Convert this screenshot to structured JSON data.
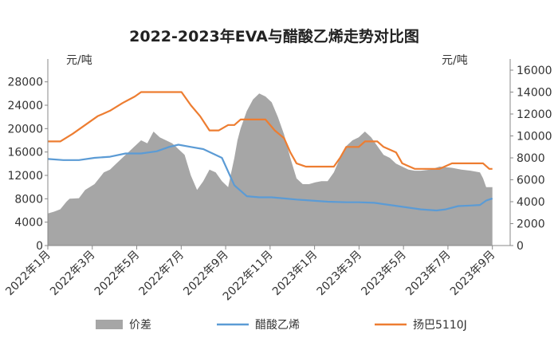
{
  "chart_data": {
    "type": "area+line",
    "title": "2022-2023年EVA与醋酸乙烯走势对比图",
    "y_left": {
      "unit": "元/吨",
      "ticks": [
        0,
        4000,
        8000,
        12000,
        16000,
        20000,
        24000,
        28000
      ],
      "lim": [
        0,
        30000
      ]
    },
    "y_right": {
      "unit": "元/吨",
      "ticks": [
        0,
        2000,
        4000,
        6000,
        8000,
        10000,
        12000,
        14000,
        16000
      ],
      "lim": [
        0,
        16000
      ]
    },
    "x_ticks": [
      "2022年1月",
      "2022年3月",
      "2022年5月",
      "2022年7月",
      "2022年9月",
      "2022年11月",
      "2023年1月",
      "2023年3月",
      "2023年5月",
      "2023年7月",
      "2023年9月"
    ],
    "grid": false,
    "legend_position": "bottom",
    "colors": {
      "spread": "#a6a6a6",
      "vae": "#5b9bd5",
      "eva": "#ed7d31"
    },
    "series": [
      {
        "name": "价差",
        "type": "area",
        "axis": "left",
        "color": "#a6a6a6",
        "points": [
          [
            0,
            5500
          ],
          [
            0.2,
            5800
          ],
          [
            0.4,
            6200
          ],
          [
            0.6,
            7500
          ],
          [
            0.7,
            8000
          ],
          [
            1.0,
            8100
          ],
          [
            1.2,
            9500
          ],
          [
            1.5,
            10500
          ],
          [
            1.8,
            12500
          ],
          [
            2.0,
            13000
          ],
          [
            2.2,
            14000
          ],
          [
            2.5,
            15500
          ],
          [
            2.8,
            17000
          ],
          [
            3.0,
            18000
          ],
          [
            3.2,
            17500
          ],
          [
            3.4,
            19500
          ],
          [
            3.6,
            18500
          ],
          [
            3.8,
            18000
          ],
          [
            4.0,
            17500
          ],
          [
            4.2,
            16500
          ],
          [
            4.4,
            15500
          ],
          [
            4.6,
            12000
          ],
          [
            4.8,
            9500
          ],
          [
            5.0,
            11000
          ],
          [
            5.2,
            13000
          ],
          [
            5.4,
            12500
          ],
          [
            5.6,
            11000
          ],
          [
            5.8,
            10000
          ],
          [
            5.9,
            12500
          ],
          [
            6.0,
            15000
          ],
          [
            6.1,
            18000
          ],
          [
            6.2,
            20000
          ],
          [
            6.4,
            23000
          ],
          [
            6.6,
            25000
          ],
          [
            6.8,
            26000
          ],
          [
            7.0,
            25500
          ],
          [
            7.2,
            24500
          ],
          [
            7.4,
            22000
          ],
          [
            7.6,
            19000
          ],
          [
            7.8,
            15000
          ],
          [
            8.0,
            11500
          ],
          [
            8.2,
            10500
          ],
          [
            8.4,
            10500
          ],
          [
            8.6,
            10800
          ],
          [
            8.8,
            11000
          ],
          [
            9.0,
            11000
          ],
          [
            9.2,
            12500
          ],
          [
            9.4,
            15000
          ],
          [
            9.6,
            17000
          ],
          [
            9.8,
            18000
          ],
          [
            10.0,
            18500
          ],
          [
            10.2,
            19500
          ],
          [
            10.4,
            18500
          ],
          [
            10.6,
            17000
          ],
          [
            10.8,
            15500
          ],
          [
            11.0,
            15000
          ],
          [
            11.2,
            14000
          ],
          [
            11.4,
            13500
          ],
          [
            11.6,
            13000
          ],
          [
            11.8,
            12800
          ],
          [
            12.0,
            12800
          ],
          [
            12.3,
            13000
          ],
          [
            12.6,
            13500
          ],
          [
            13.0,
            13300
          ],
          [
            13.3,
            13000
          ],
          [
            13.6,
            12800
          ],
          [
            13.9,
            12500
          ],
          [
            14.0,
            11500
          ],
          [
            14.1,
            10000
          ],
          [
            14.3,
            10000
          ]
        ]
      },
      {
        "name": "醋酸乙烯",
        "type": "line",
        "axis": "right",
        "color": "#5b9bd5",
        "points": [
          [
            0,
            7900
          ],
          [
            0.5,
            7800
          ],
          [
            1.0,
            7800
          ],
          [
            1.5,
            8000
          ],
          [
            2.0,
            8100
          ],
          [
            2.5,
            8400
          ],
          [
            3.0,
            8400
          ],
          [
            3.5,
            8600
          ],
          [
            3.9,
            9000
          ],
          [
            4.2,
            9200
          ],
          [
            4.6,
            9000
          ],
          [
            5.0,
            8800
          ],
          [
            5.3,
            8400
          ],
          [
            5.6,
            8000
          ],
          [
            6.0,
            5500
          ],
          [
            6.4,
            4500
          ],
          [
            6.8,
            4400
          ],
          [
            7.2,
            4400
          ],
          [
            7.6,
            4300
          ],
          [
            8.0,
            4200
          ],
          [
            8.5,
            4100
          ],
          [
            9.0,
            4000
          ],
          [
            9.6,
            3950
          ],
          [
            10.0,
            3950
          ],
          [
            10.5,
            3900
          ],
          [
            11.0,
            3700
          ],
          [
            11.5,
            3500
          ],
          [
            12.0,
            3300
          ],
          [
            12.5,
            3200
          ],
          [
            12.8,
            3300
          ],
          [
            13.2,
            3600
          ],
          [
            13.6,
            3650
          ],
          [
            13.9,
            3700
          ],
          [
            14.1,
            4100
          ],
          [
            14.3,
            4300
          ]
        ]
      },
      {
        "name": "扬巴5110J",
        "type": "line",
        "axis": "right",
        "color": "#ed7d31",
        "points": [
          [
            0,
            9500
          ],
          [
            0.4,
            9500
          ],
          [
            0.8,
            10200
          ],
          [
            1.2,
            11000
          ],
          [
            1.6,
            11800
          ],
          [
            2.0,
            12300
          ],
          [
            2.4,
            13000
          ],
          [
            2.8,
            13600
          ],
          [
            3.0,
            14000
          ],
          [
            3.5,
            14000
          ],
          [
            4.0,
            14000
          ],
          [
            4.3,
            14000
          ],
          [
            4.6,
            12800
          ],
          [
            4.9,
            11800
          ],
          [
            5.2,
            10500
          ],
          [
            5.5,
            10500
          ],
          [
            5.8,
            11000
          ],
          [
            6.0,
            11000
          ],
          [
            6.2,
            11500
          ],
          [
            6.6,
            11500
          ],
          [
            7.0,
            11500
          ],
          [
            7.3,
            10500
          ],
          [
            7.6,
            9800
          ],
          [
            7.8,
            8500
          ],
          [
            8.0,
            7500
          ],
          [
            8.3,
            7200
          ],
          [
            9.0,
            7200
          ],
          [
            9.2,
            7200
          ],
          [
            9.4,
            8000
          ],
          [
            9.6,
            9000
          ],
          [
            10.0,
            9000
          ],
          [
            10.2,
            9500
          ],
          [
            10.6,
            9500
          ],
          [
            10.8,
            9000
          ],
          [
            11.2,
            8500
          ],
          [
            11.4,
            7500
          ],
          [
            11.8,
            7000
          ],
          [
            12.2,
            7000
          ],
          [
            12.6,
            7000
          ],
          [
            13.0,
            7500
          ],
          [
            13.5,
            7500
          ],
          [
            14.0,
            7500
          ],
          [
            14.2,
            7000
          ],
          [
            14.3,
            7000
          ]
        ]
      }
    ]
  }
}
